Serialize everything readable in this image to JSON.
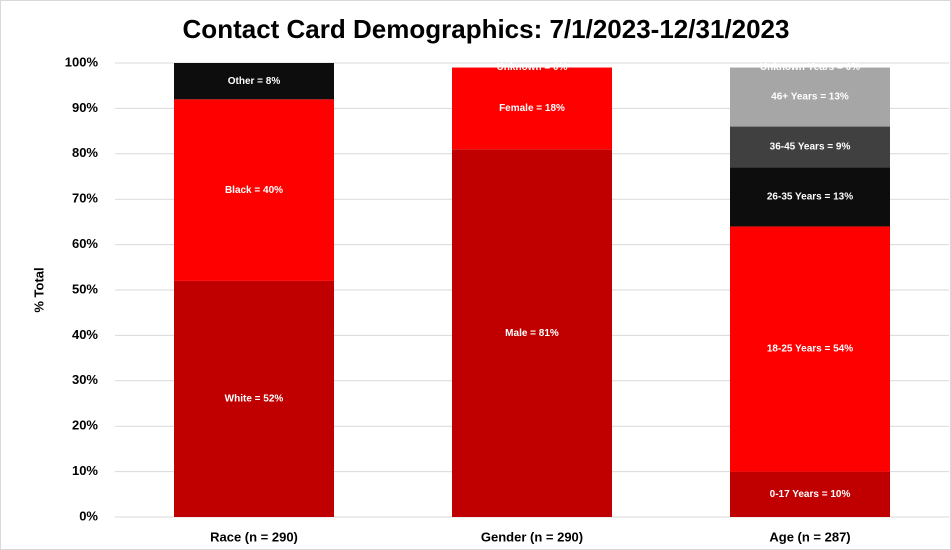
{
  "chart_data": {
    "type": "stacked-bar",
    "title": "Contact Card Demographics: 7/1/2023-12/31/2023",
    "y_label": "% Total",
    "categories": [
      "Race (n = 290)",
      "Gender (n = 290)",
      "Age (n = 287)"
    ],
    "stacks": [
      {
        "segments": [
          {
            "value": 52,
            "value_label": "White = 52%",
            "color": "#c00000"
          },
          {
            "value": 40,
            "value_label": "Black = 40%",
            "color": "#ff0000"
          },
          {
            "value": 8,
            "value_label": "Other = 8%",
            "color": "#0d0d0d"
          }
        ]
      },
      {
        "segments": [
          {
            "value": 81,
            "value_label": "Male = 81%",
            "color": "#c00000"
          },
          {
            "value": 18,
            "value_label": "Female = 18%",
            "color": "#ff0000"
          },
          {
            "value": 0,
            "value_label": "Unknown = 0%",
            "color": "#000000"
          }
        ]
      },
      {
        "segments": [
          {
            "value": 10,
            "value_label": "0-17 Years = 10%",
            "color": "#c00000"
          },
          {
            "value": 54,
            "value_label": "18-25 Years = 54%",
            "color": "#ff0000"
          },
          {
            "value": 13,
            "value_label": "26-35 Years = 13%",
            "color": "#0d0d0d"
          },
          {
            "value": 9,
            "value_label": "36-45 Years = 9%",
            "color": "#404040"
          },
          {
            "value": 13,
            "value_label": "46+ Years = 13%",
            "color": "#a6a6a6"
          },
          {
            "value": 0,
            "value_label": "Unknown Years = 0%",
            "color": "#bfbfbf"
          }
        ]
      }
    ],
    "ylim": [
      0,
      100
    ],
    "yticks": [
      {
        "value": 0,
        "label": "0%"
      },
      {
        "value": 10,
        "label": "10%"
      },
      {
        "value": 20,
        "label": "20%"
      },
      {
        "value": 30,
        "label": "30%"
      },
      {
        "value": 40,
        "label": "40%"
      },
      {
        "value": 50,
        "label": "50%"
      },
      {
        "value": 60,
        "label": "60%"
      },
      {
        "value": 70,
        "label": "70%"
      },
      {
        "value": 80,
        "label": "80%"
      },
      {
        "value": 90,
        "label": "90%"
      },
      {
        "value": 100,
        "label": "100%"
      }
    ],
    "grid": true
  }
}
